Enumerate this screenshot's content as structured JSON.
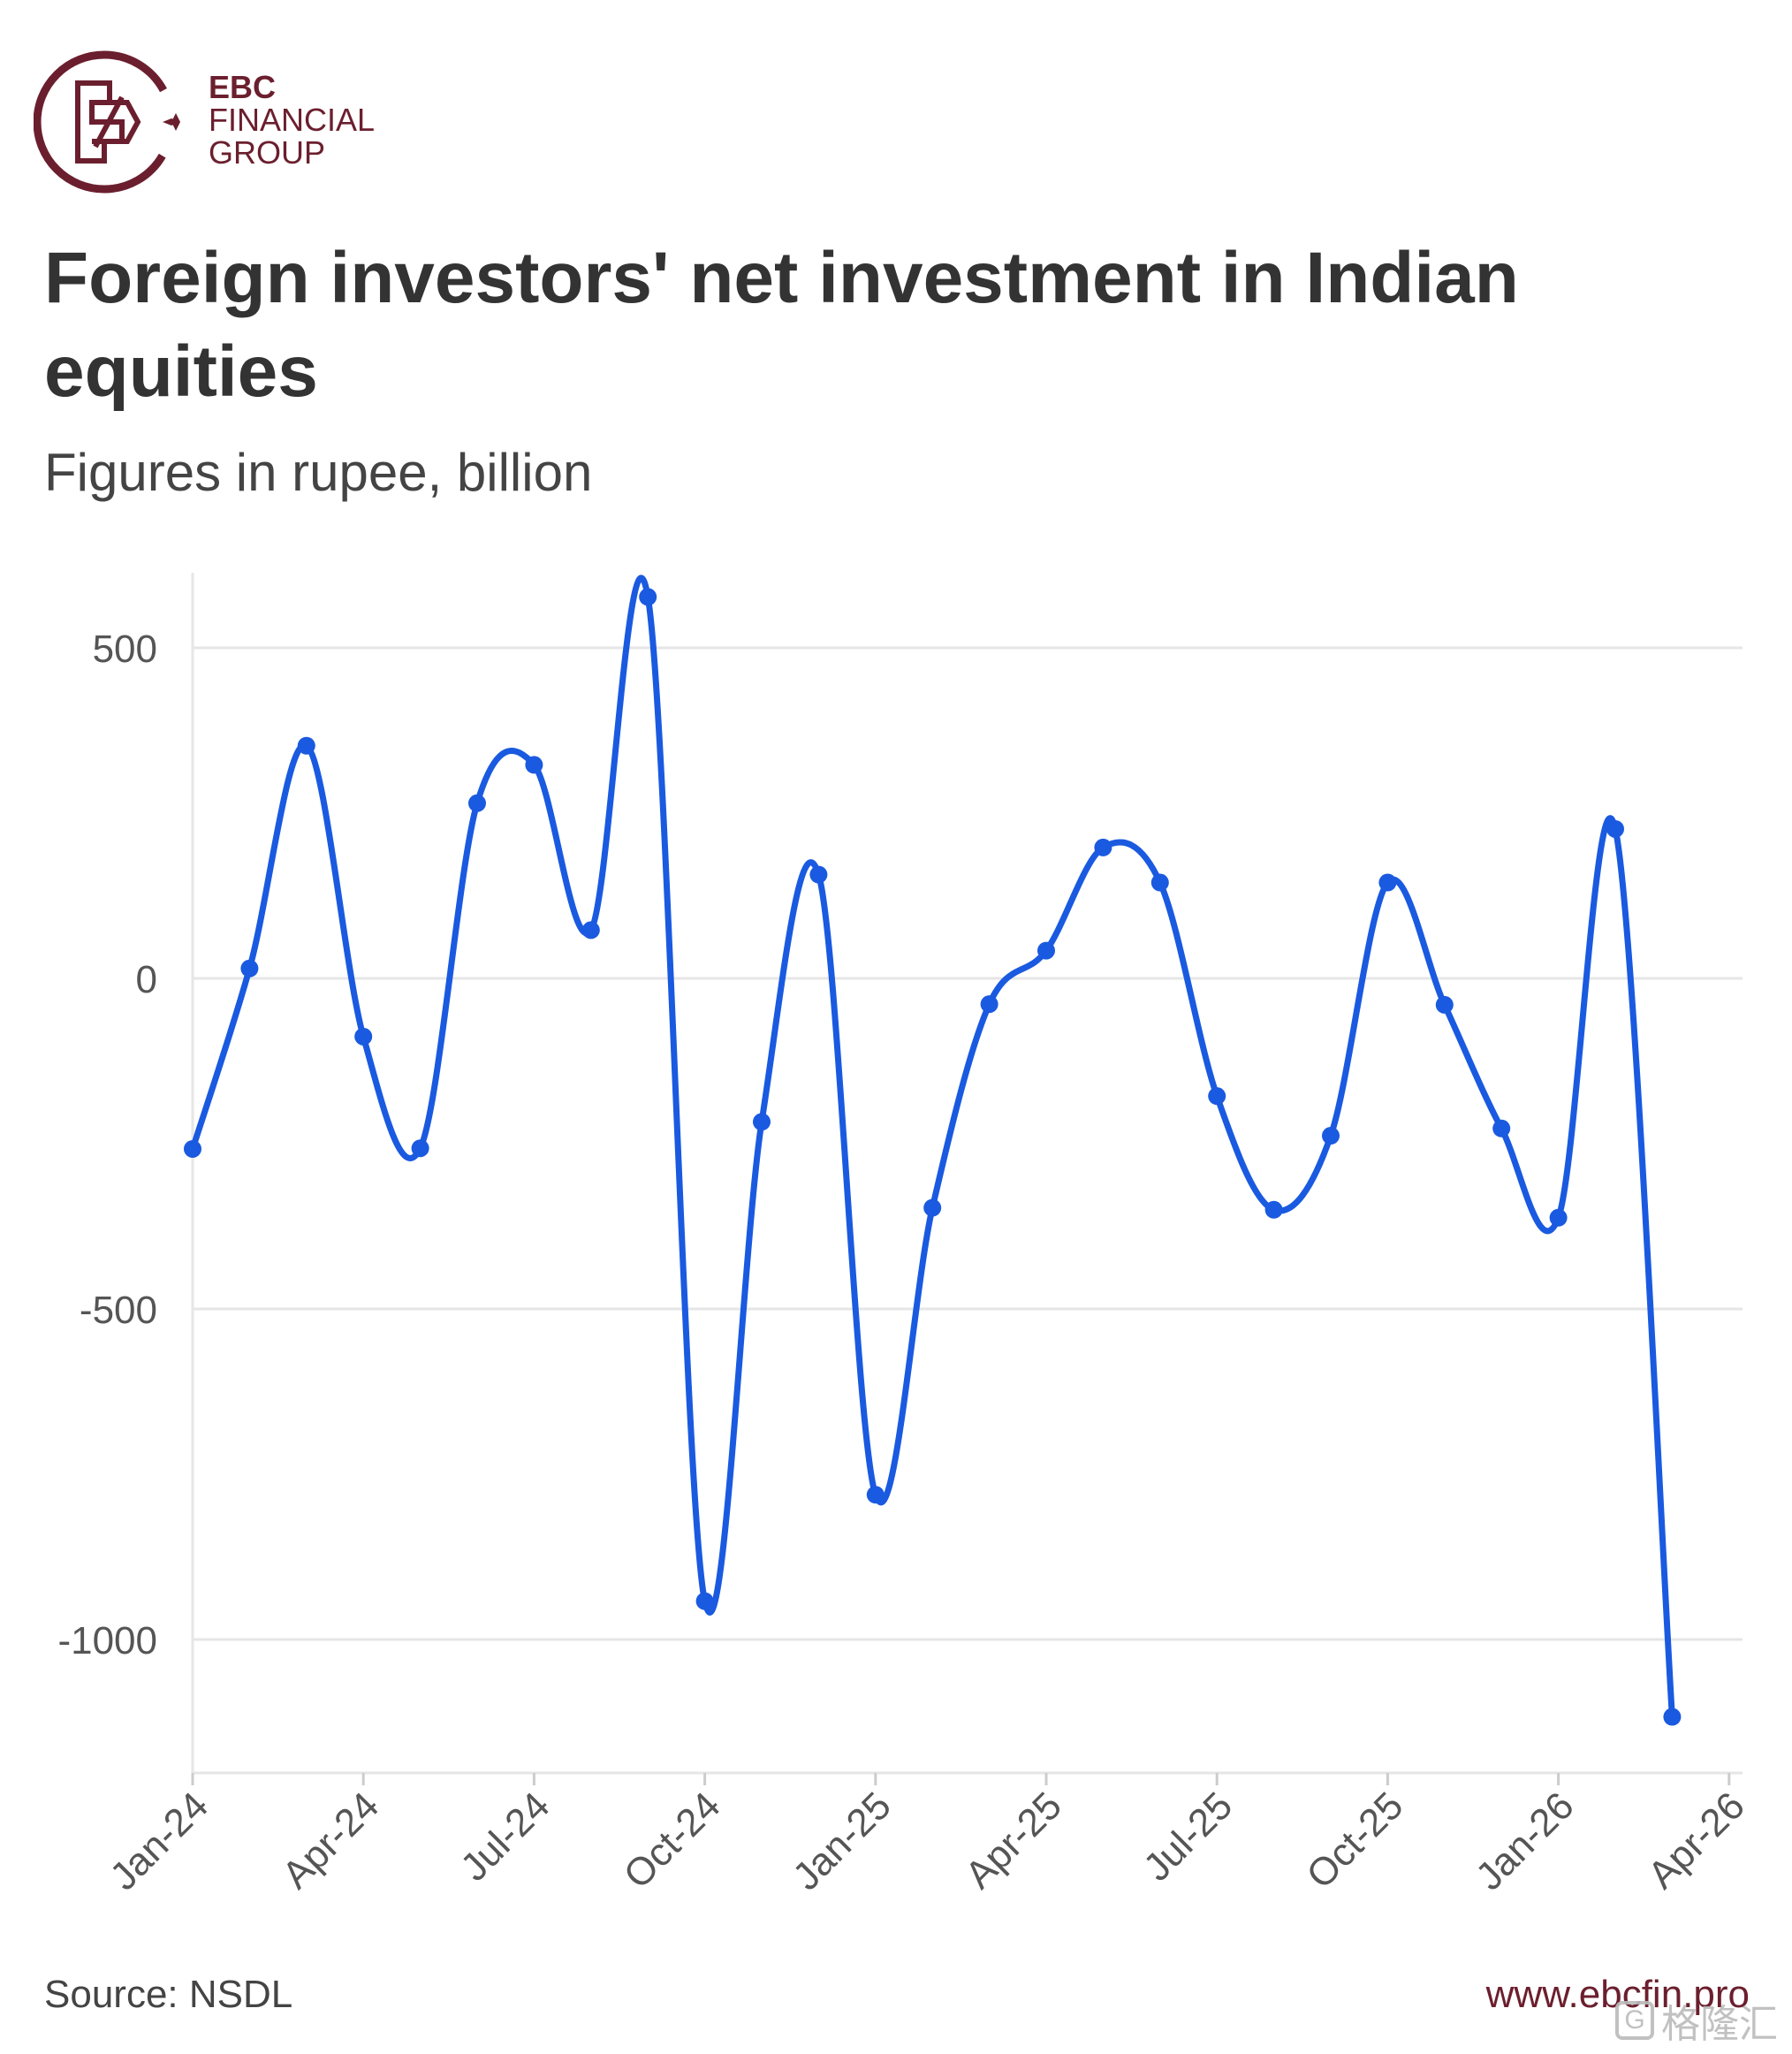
{
  "brand": {
    "line1": "EBC",
    "line2": "FINANCIAL",
    "line3": "GROUP",
    "color": "#6b1f2e"
  },
  "title": "Foreign investors' net investment in Indian equities",
  "subtitle": "Figures in rupee, billion",
  "footer": {
    "source": "Source: NSDL",
    "website": "www.ebcfin.pro",
    "watermark": "格隆汇"
  },
  "chart_data": {
    "type": "line",
    "line_color": "#1a5ae0",
    "grid": true,
    "ylim": [
      -1200,
      620
    ],
    "yticks": [
      500,
      0,
      -500,
      -1000
    ],
    "xticks": [
      "Jan-24",
      "Apr-24",
      "Jul-24",
      "Oct-24",
      "Jan-25",
      "Apr-25",
      "Jul-25",
      "Oct-25",
      "Jan-26",
      "Apr-26"
    ],
    "x": [
      "Jan-24",
      "Feb-24",
      "Mar-24",
      "Apr-24",
      "May-24",
      "Jun-24",
      "Jul-24",
      "Aug-24",
      "Sep-24",
      "Oct-24",
      "Nov-24",
      "Dec-24",
      "Jan-25",
      "Feb-25",
      "Mar-25",
      "Apr-25",
      "May-25",
      "Jun-25",
      "Jul-25",
      "Aug-25",
      "Sep-25",
      "Oct-25",
      "Nov-25",
      "Dec-25",
      "Jan-26",
      "Feb-26",
      "Mar-26"
    ],
    "series": [
      {
        "values": [
          -258,
          15,
          352,
          -88,
          -257,
          265,
          323,
          73,
          577,
          -942,
          -217,
          157,
          -781,
          -347,
          -39,
          42,
          198,
          145,
          -178,
          -350,
          -238,
          145,
          -40,
          -227,
          -362,
          226,
          -1117
        ]
      }
    ]
  }
}
